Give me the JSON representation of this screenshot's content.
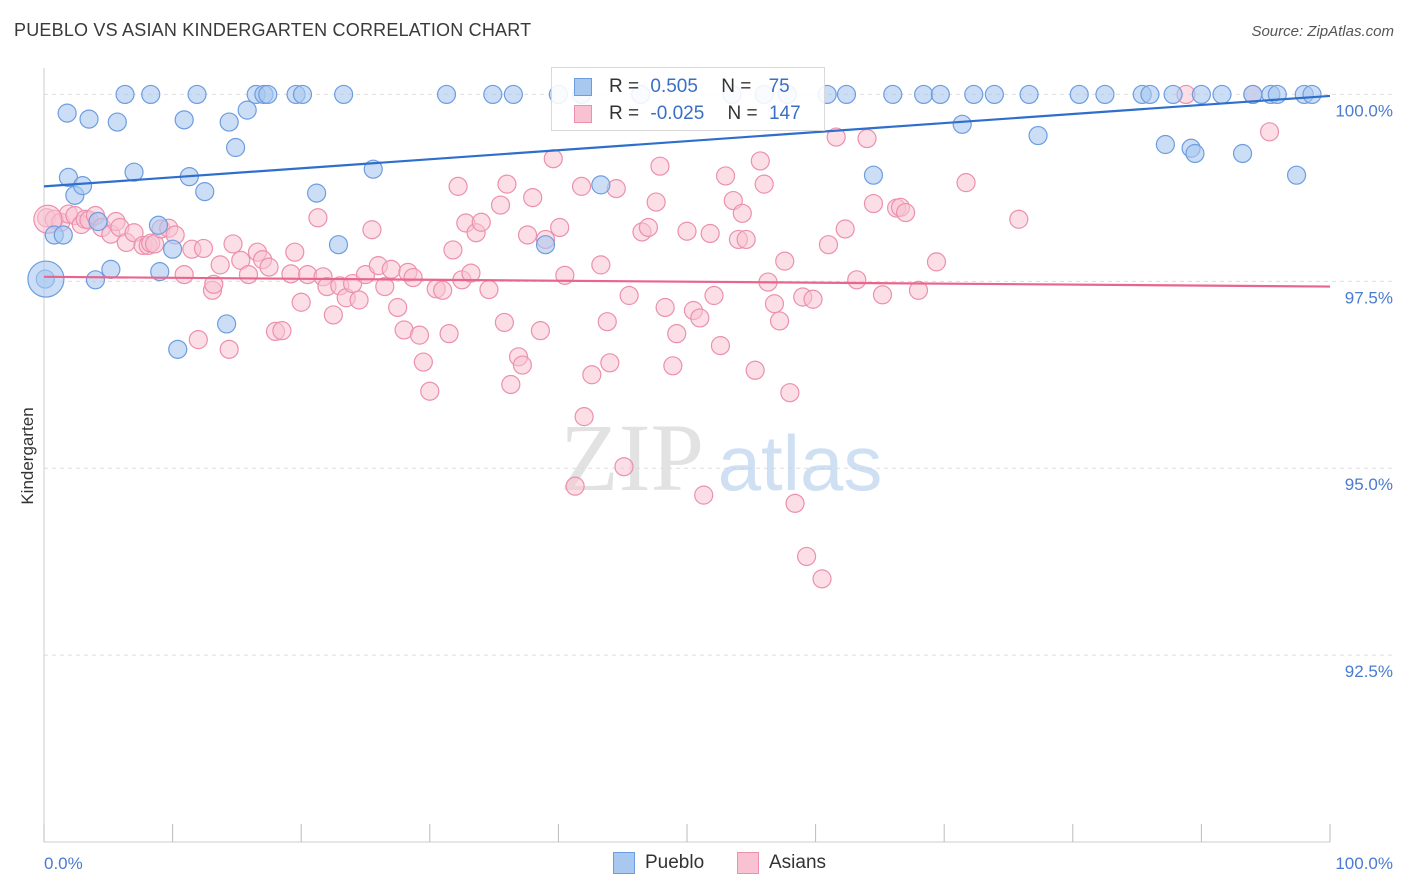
{
  "title": "PUEBLO VS ASIAN KINDERGARTEN CORRELATION CHART",
  "source": "Source: ZipAtlas.com",
  "watermark": {
    "zip": "ZIP",
    "atlas": "atlas"
  },
  "legend": {
    "rows": [
      {
        "r_label": "R =",
        "r_value": "0.505",
        "n_label": "N =",
        "n_value": "75"
      },
      {
        "r_label": "R =",
        "r_value": "-0.025",
        "n_label": "N =",
        "n_value": "147"
      }
    ]
  },
  "bottom_legend": {
    "pueblo": "Pueblo",
    "asians": "Asians"
  },
  "colors": {
    "pueblo_fill": "#a9c8f0",
    "pueblo_stroke": "#6d9de0",
    "pueblo_line": "#2f6fcc",
    "asian_fill": "#f8c2d2",
    "asian_stroke": "#ec90ae",
    "asian_line": "#e8668e",
    "axis_text": "#4a7bd0",
    "grid": "#dddddd"
  },
  "chart_data": {
    "type": "scatter",
    "title": "PUEBLO VS ASIAN KINDERGARTEN CORRELATION CHART",
    "xlabel": "",
    "ylabel": "Kindergarten",
    "xlim": [
      0,
      100
    ],
    "ylim": [
      90.0,
      100.3
    ],
    "x_tick_labels": [
      "0.0%",
      "100.0%"
    ],
    "y_ticks": [
      92.5,
      95.0,
      97.5,
      100.0
    ],
    "y_tick_labels": [
      "92.5%",
      "95.0%",
      "97.5%",
      "100.0%"
    ],
    "series": [
      {
        "name": "Pueblo",
        "r": 0.505,
        "n": 75,
        "trend": {
          "x": [
            0,
            100
          ],
          "y": [
            98.77,
            99.98
          ]
        },
        "points": [
          [
            6.3,
            100
          ],
          [
            8.3,
            100
          ],
          [
            11.9,
            100
          ],
          [
            16.5,
            100
          ],
          [
            17.1,
            100
          ],
          [
            17.4,
            100
          ],
          [
            19.6,
            100
          ],
          [
            20.1,
            100
          ],
          [
            23.3,
            100
          ],
          [
            31.3,
            100
          ],
          [
            34.9,
            100
          ],
          [
            36.5,
            100
          ],
          [
            41.8,
            100
          ],
          [
            46.4,
            100
          ],
          [
            56.0,
            100
          ],
          [
            57.8,
            100
          ],
          [
            60.9,
            100
          ],
          [
            62.4,
            100
          ],
          [
            66.0,
            100
          ],
          [
            68.4,
            100
          ],
          [
            69.7,
            100
          ],
          [
            72.3,
            100
          ],
          [
            73.9,
            100
          ],
          [
            76.6,
            100
          ],
          [
            80.5,
            100
          ],
          [
            82.5,
            100
          ],
          [
            85.4,
            100
          ],
          [
            86.0,
            100
          ],
          [
            87.8,
            100
          ],
          [
            90.0,
            100
          ],
          [
            91.6,
            100
          ],
          [
            94.0,
            100
          ],
          [
            95.4,
            100
          ],
          [
            95.9,
            100
          ],
          [
            98.0,
            100
          ],
          [
            1.8,
            99.75
          ],
          [
            3.5,
            99.67
          ],
          [
            5.7,
            99.63
          ],
          [
            10.9,
            99.66
          ],
          [
            14.4,
            99.63
          ],
          [
            15.8,
            99.79
          ],
          [
            14.9,
            99.29
          ],
          [
            7.0,
            98.96
          ],
          [
            11.3,
            98.9
          ],
          [
            1.9,
            98.89
          ],
          [
            2.4,
            98.65
          ],
          [
            3.0,
            98.78
          ],
          [
            12.5,
            98.7
          ],
          [
            21.2,
            98.68
          ],
          [
            25.6,
            99.0
          ],
          [
            43.3,
            98.79
          ],
          [
            64.5,
            98.92
          ],
          [
            71.4,
            99.6
          ],
          [
            77.3,
            99.45
          ],
          [
            87.2,
            99.33
          ],
          [
            89.2,
            99.28
          ],
          [
            89.5,
            99.21
          ],
          [
            93.2,
            99.21
          ],
          [
            97.4,
            98.92
          ],
          [
            0.8,
            98.12
          ],
          [
            1.5,
            98.12
          ],
          [
            4.2,
            98.3
          ],
          [
            8.9,
            98.25
          ],
          [
            9.0,
            97.63
          ],
          [
            10.0,
            97.93
          ],
          [
            22.9,
            97.99
          ],
          [
            39.0,
            97.99
          ],
          [
            0.1,
            97.53
          ],
          [
            4.0,
            97.52
          ],
          [
            5.2,
            97.66
          ],
          [
            14.2,
            96.93
          ],
          [
            10.4,
            96.59
          ],
          [
            98.6,
            100
          ],
          [
            40.0,
            100
          ],
          [
            53.5,
            100
          ]
        ]
      },
      {
        "name": "Asians",
        "r": -0.025,
        "n": 147,
        "trend": {
          "x": [
            0,
            100
          ],
          "y": [
            97.56,
            97.43
          ]
        },
        "points": [
          [
            0.2,
            98.35
          ],
          [
            0.8,
            98.33
          ],
          [
            1.3,
            98.29
          ],
          [
            1.9,
            98.4
          ],
          [
            2.4,
            98.38
          ],
          [
            2.9,
            98.26
          ],
          [
            3.2,
            98.33
          ],
          [
            3.5,
            98.32
          ],
          [
            4.0,
            98.38
          ],
          [
            4.5,
            98.22
          ],
          [
            5.2,
            98.13
          ],
          [
            5.6,
            98.3
          ],
          [
            5.9,
            98.22
          ],
          [
            6.4,
            98.02
          ],
          [
            7.0,
            98.15
          ],
          [
            7.7,
            97.98
          ],
          [
            8.1,
            97.98
          ],
          [
            8.3,
            98.01
          ],
          [
            8.6,
            98.0
          ],
          [
            9.1,
            98.2
          ],
          [
            9.7,
            98.21
          ],
          [
            10.2,
            98.12
          ],
          [
            10.9,
            97.59
          ],
          [
            11.5,
            97.93
          ],
          [
            12.0,
            96.72
          ],
          [
            12.4,
            97.94
          ],
          [
            13.1,
            97.38
          ],
          [
            13.2,
            97.46
          ],
          [
            13.7,
            97.72
          ],
          [
            14.4,
            96.59
          ],
          [
            14.7,
            98.0
          ],
          [
            15.3,
            97.78
          ],
          [
            15.9,
            97.59
          ],
          [
            16.6,
            97.89
          ],
          [
            17.0,
            97.79
          ],
          [
            17.5,
            97.69
          ],
          [
            18.0,
            96.83
          ],
          [
            18.5,
            96.84
          ],
          [
            19.2,
            97.6
          ],
          [
            19.5,
            97.89
          ],
          [
            20.0,
            97.22
          ],
          [
            20.5,
            97.59
          ],
          [
            21.3,
            98.35
          ],
          [
            21.7,
            97.56
          ],
          [
            22.0,
            97.43
          ],
          [
            22.5,
            97.05
          ],
          [
            23.0,
            97.44
          ],
          [
            23.5,
            97.28
          ],
          [
            24.0,
            97.47
          ],
          [
            24.5,
            97.25
          ],
          [
            25.0,
            97.59
          ],
          [
            25.5,
            98.19
          ],
          [
            26.0,
            97.71
          ],
          [
            26.5,
            97.43
          ],
          [
            27.0,
            97.66
          ],
          [
            27.5,
            97.15
          ],
          [
            28.0,
            96.85
          ],
          [
            28.3,
            97.62
          ],
          [
            28.7,
            97.55
          ],
          [
            29.2,
            96.78
          ],
          [
            29.5,
            96.42
          ],
          [
            30.0,
            96.03
          ],
          [
            30.5,
            97.4
          ],
          [
            31.0,
            97.38
          ],
          [
            31.5,
            96.8
          ],
          [
            31.8,
            97.92
          ],
          [
            32.2,
            98.77
          ],
          [
            32.5,
            97.52
          ],
          [
            32.8,
            98.28
          ],
          [
            33.2,
            97.61
          ],
          [
            33.6,
            98.15
          ],
          [
            34.0,
            98.29
          ],
          [
            34.6,
            97.39
          ],
          [
            35.5,
            98.52
          ],
          [
            35.8,
            96.95
          ],
          [
            36.3,
            96.12
          ],
          [
            36.9,
            96.49
          ],
          [
            37.2,
            96.38
          ],
          [
            37.6,
            98.12
          ],
          [
            38.0,
            98.62
          ],
          [
            38.6,
            96.84
          ],
          [
            39.0,
            98.06
          ],
          [
            39.6,
            99.14
          ],
          [
            40.1,
            98.22
          ],
          [
            40.5,
            97.58
          ],
          [
            41.3,
            94.76
          ],
          [
            41.8,
            98.77
          ],
          [
            42.0,
            95.69
          ],
          [
            42.6,
            96.25
          ],
          [
            43.3,
            97.72
          ],
          [
            43.8,
            96.96
          ],
          [
            44.0,
            96.41
          ],
          [
            44.5,
            98.74
          ],
          [
            45.1,
            95.02
          ],
          [
            45.5,
            97.31
          ],
          [
            46.5,
            98.16
          ],
          [
            47.0,
            98.22
          ],
          [
            47.6,
            98.56
          ],
          [
            47.9,
            99.04
          ],
          [
            48.3,
            97.15
          ],
          [
            48.9,
            96.37
          ],
          [
            49.2,
            96.8
          ],
          [
            50.0,
            98.17
          ],
          [
            50.5,
            97.11
          ],
          [
            51.0,
            97.01
          ],
          [
            51.3,
            94.64
          ],
          [
            51.8,
            98.14
          ],
          [
            52.1,
            97.31
          ],
          [
            52.6,
            96.64
          ],
          [
            53.0,
            98.91
          ],
          [
            53.6,
            98.58
          ],
          [
            54.0,
            98.06
          ],
          [
            54.3,
            98.41
          ],
          [
            54.6,
            98.06
          ],
          [
            55.3,
            96.31
          ],
          [
            55.7,
            99.11
          ],
          [
            56.0,
            98.8
          ],
          [
            56.3,
            97.49
          ],
          [
            56.8,
            97.2
          ],
          [
            57.2,
            96.97
          ],
          [
            57.6,
            97.77
          ],
          [
            58.0,
            96.01
          ],
          [
            58.4,
            94.53
          ],
          [
            59.0,
            97.29
          ],
          [
            59.3,
            93.82
          ],
          [
            59.8,
            97.26
          ],
          [
            60.5,
            93.52
          ],
          [
            61.0,
            97.99
          ],
          [
            61.6,
            99.43
          ],
          [
            62.3,
            98.2
          ],
          [
            63.2,
            97.52
          ],
          [
            64.0,
            99.41
          ],
          [
            64.5,
            98.54
          ],
          [
            65.2,
            97.32
          ],
          [
            66.3,
            98.48
          ],
          [
            66.6,
            98.49
          ],
          [
            67.0,
            98.42
          ],
          [
            68.0,
            97.38
          ],
          [
            69.4,
            97.76
          ],
          [
            71.7,
            98.82
          ],
          [
            75.8,
            98.33
          ],
          [
            94.0,
            100
          ],
          [
            88.8,
            100
          ],
          [
            95.3,
            99.5
          ],
          [
            36.0,
            98.8
          ]
        ]
      }
    ]
  }
}
